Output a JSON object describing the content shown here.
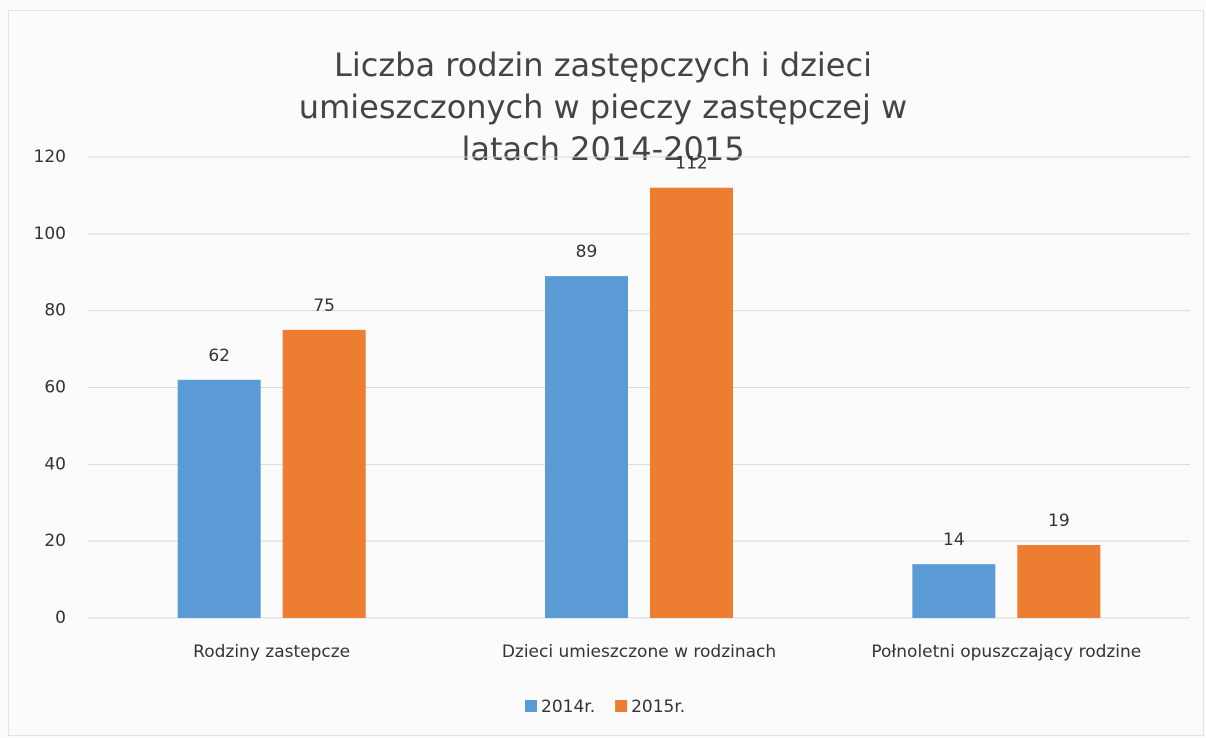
{
  "chart_data": {
    "type": "bar",
    "title": "Liczba rodzin zastępczych i dzieci umieszczonych w pieczy zastępczej w latach 2014-2015",
    "categories": [
      "Rodziny zastepcze",
      "Dzieci umieszczone w rodzinach",
      "Połnoletni opuszczający rodzine"
    ],
    "series": [
      {
        "name": "2014r.",
        "color": "#5b9bd5",
        "values": [
          62,
          89,
          14
        ]
      },
      {
        "name": "2015r.",
        "color": "#ed7d31",
        "values": [
          75,
          112,
          19
        ]
      }
    ],
    "ylim": [
      0,
      120
    ],
    "yticks": [
      0,
      20,
      40,
      60,
      80,
      100,
      120
    ],
    "grid": true,
    "legend": "bottom"
  }
}
